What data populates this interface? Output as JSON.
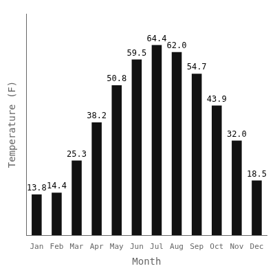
{
  "chart_data": {
    "type": "bar",
    "xlabel": "Month",
    "ylabel": "Temperature (F)",
    "categories": [
      "Jan",
      "Feb",
      "Mar",
      "Apr",
      "May",
      "Jun",
      "Jul",
      "Aug",
      "Sep",
      "Oct",
      "Nov",
      "Dec"
    ],
    "values": [
      13.8,
      14.4,
      25.3,
      38.2,
      50.8,
      59.5,
      64.4,
      62.0,
      54.7,
      43.9,
      32.0,
      18.5
    ],
    "value_labels": [
      "13.8",
      "14.4",
      "25.3",
      "38.2",
      "50.8",
      "59.5",
      "64.4",
      "62.0",
      "54.7",
      "43.9",
      "32.0",
      "18.5"
    ],
    "color": "#111111",
    "ylim": [
      0,
      75
    ],
    "grid": false,
    "data_labels": true,
    "tick_labels": "x"
  }
}
